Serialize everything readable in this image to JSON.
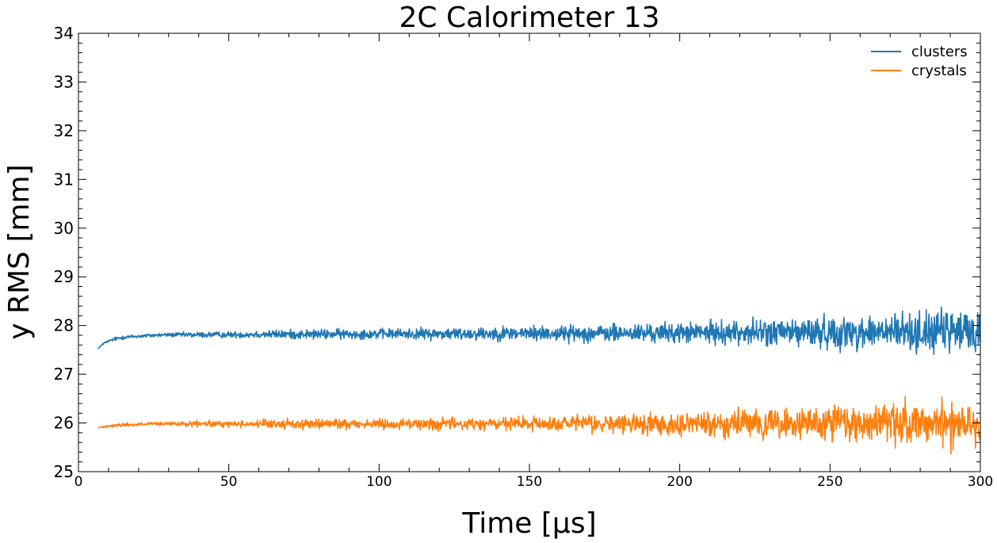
{
  "chart_data": {
    "type": "line",
    "title": "2C Calorimeter 13",
    "xlabel": "Time [µs]",
    "ylabel": "y RMS [mm]",
    "xlim": [
      0,
      300
    ],
    "ylim": [
      25,
      34
    ],
    "xticks": [
      0,
      50,
      100,
      150,
      200,
      250,
      300
    ],
    "yticks": [
      25,
      26,
      27,
      28,
      29,
      30,
      31,
      32,
      33,
      34
    ],
    "grid": false,
    "legend_position": "top-right",
    "series": [
      {
        "name": "clusters",
        "color": "#1f77b4",
        "x": [
          6.5,
          8,
          10,
          12,
          15,
          20,
          25,
          30,
          40,
          50,
          60,
          80,
          100,
          120,
          140,
          160,
          180,
          200,
          220,
          240,
          260,
          280,
          300
        ],
        "values": [
          27.52,
          27.62,
          27.68,
          27.72,
          27.76,
          27.78,
          27.8,
          27.81,
          27.81,
          27.81,
          27.82,
          27.82,
          27.83,
          27.83,
          27.84,
          27.84,
          27.84,
          27.85,
          27.86,
          27.86,
          27.86,
          27.87,
          27.88
        ],
        "noise_amplitude": [
          0.0,
          0.01,
          0.01,
          0.02,
          0.02,
          0.02,
          0.02,
          0.02,
          0.03,
          0.03,
          0.04,
          0.05,
          0.05,
          0.06,
          0.07,
          0.08,
          0.09,
          0.1,
          0.12,
          0.15,
          0.17,
          0.2,
          0.22
        ]
      },
      {
        "name": "crystals",
        "color": "#ff7f0e",
        "x": [
          6.5,
          8,
          10,
          12,
          15,
          20,
          25,
          30,
          40,
          50,
          60,
          80,
          100,
          120,
          140,
          160,
          180,
          200,
          220,
          240,
          260,
          280,
          300
        ],
        "values": [
          25.9,
          25.92,
          25.94,
          25.95,
          25.96,
          25.97,
          25.98,
          25.98,
          25.98,
          25.98,
          25.98,
          25.98,
          25.98,
          25.98,
          25.98,
          25.98,
          25.98,
          25.98,
          25.98,
          25.98,
          25.99,
          25.99,
          26.0
        ],
        "noise_amplitude": [
          0.0,
          0.01,
          0.01,
          0.02,
          0.02,
          0.02,
          0.02,
          0.02,
          0.03,
          0.03,
          0.04,
          0.05,
          0.05,
          0.06,
          0.07,
          0.08,
          0.1,
          0.11,
          0.13,
          0.16,
          0.18,
          0.21,
          0.24
        ]
      }
    ]
  }
}
